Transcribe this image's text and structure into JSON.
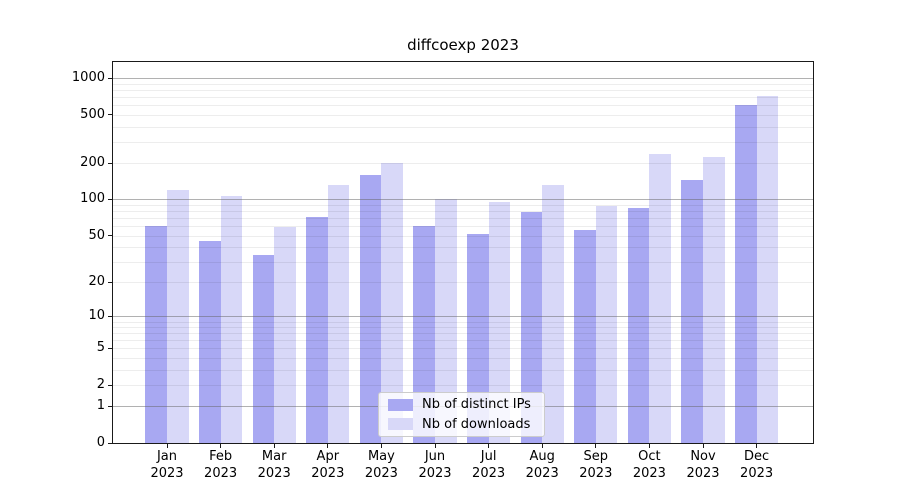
{
  "title": "diffcoexp 2023",
  "legend": {
    "items": [
      {
        "label": "Nb of distinct IPs",
        "series": "distinct_ips"
      },
      {
        "label": "Nb of downloads",
        "series": "downloads"
      }
    ]
  },
  "colors": {
    "distinct_ips": "#a8a8f2",
    "downloads": "#d8d8f8",
    "grid_decade": "rgba(100,100,100,0.5)",
    "grid_minor": "rgba(0,0,0,0.07)",
    "axis": "#1a1a1a",
    "legend_border": "#cccccc"
  },
  "chart_data": {
    "type": "bar",
    "title": "diffcoexp 2023",
    "categories": [
      "Jan 2023",
      "Feb 2023",
      "Mar 2023",
      "Apr 2023",
      "May 2023",
      "Jun 2023",
      "Jul 2023",
      "Aug 2023",
      "Sep 2023",
      "Oct 2023",
      "Nov 2023",
      "Dec 2023"
    ],
    "series": [
      {
        "name": "Nb of distinct IPs",
        "values": [
          60,
          45,
          34,
          72,
          160,
          60,
          52,
          78,
          56,
          85,
          145,
          600
        ]
      },
      {
        "name": "Nb of downloads",
        "values": [
          121,
          106,
          59,
          133,
          200,
          100,
          95,
          133,
          88,
          238,
          227,
          715
        ]
      }
    ],
    "xlabel": "",
    "ylabel": "",
    "yscale": "log10(value+1)",
    "ylim": [
      0,
      1365
    ],
    "yticks": [
      0,
      1,
      2,
      5,
      10,
      20,
      50,
      100,
      200,
      500,
      1000
    ],
    "decade_gridlines": [
      1,
      10,
      100,
      1000
    ],
    "grid": "horizontal",
    "legend_position": "inside-bottom-center"
  }
}
